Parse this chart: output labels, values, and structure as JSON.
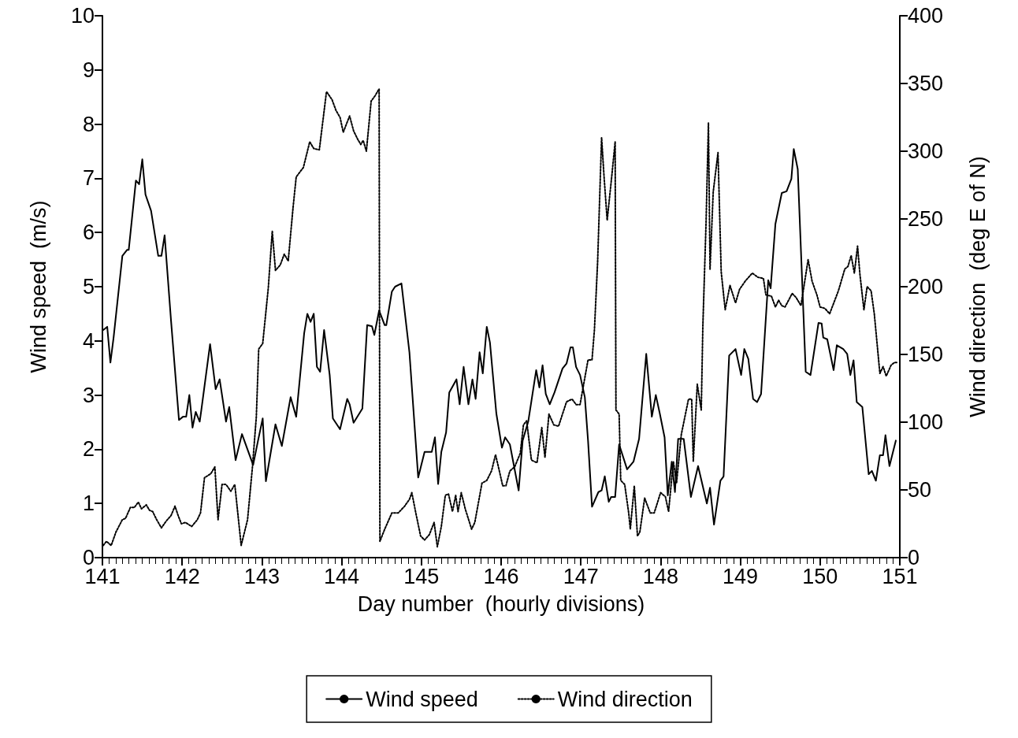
{
  "chart_data": {
    "type": "line",
    "xlabel": "Day number  (hourly divisions)",
    "ylabel": "Wind speed  (m/s)",
    "y2label": "Wind direction  (deg E of N)",
    "xlim": [
      141,
      151
    ],
    "xticks": [
      141,
      142,
      143,
      144,
      145,
      146,
      147,
      148,
      149,
      150,
      151
    ],
    "ylim": [
      0,
      10
    ],
    "yticks": [
      0,
      1,
      2,
      3,
      4,
      5,
      6,
      7,
      8,
      9,
      10
    ],
    "y2lim": [
      0,
      400
    ],
    "y2ticks": [
      0,
      50,
      100,
      150,
      200,
      250,
      300,
      350,
      400
    ],
    "grid": false,
    "legend": "bottom",
    "marker": "none",
    "series": [
      {
        "name": "Wind speed",
        "color": "#000000",
        "line_style": "solid",
        "x": [
          141.01,
          141.06,
          141.1,
          141.14,
          141.25,
          141.31,
          141.33,
          141.42,
          141.46,
          141.5,
          141.54,
          141.61,
          141.7,
          141.74,
          141.78,
          141.86,
          141.96,
          142.01,
          142.05,
          142.09,
          142.13,
          142.17,
          142.22,
          142.24,
          142.35,
          142.42,
          142.47,
          142.55,
          142.59,
          142.67,
          142.75,
          142.89,
          142.95,
          143.01,
          143.05,
          143.17,
          143.25,
          143.36,
          143.43,
          143.53,
          143.57,
          143.61,
          143.65,
          143.69,
          143.73,
          143.78,
          143.85,
          143.89,
          143.98,
          144.07,
          144.1,
          144.15,
          144.26,
          144.32,
          144.38,
          144.41,
          144.47,
          144.54,
          144.56,
          144.63,
          144.67,
          144.75,
          144.85,
          144.96,
          145.04,
          145.13,
          145.17,
          145.21,
          145.25,
          145.31,
          145.35,
          145.44,
          145.48,
          145.53,
          145.59,
          145.64,
          145.68,
          145.73,
          145.77,
          145.82,
          145.86,
          145.94,
          146.01,
          146.05,
          146.11,
          146.22,
          146.27,
          146.34,
          146.44,
          146.48,
          146.52,
          146.56,
          146.61,
          146.67,
          146.77,
          146.82,
          146.87,
          146.9,
          146.94,
          146.99,
          147.05,
          147.09,
          147.14,
          147.22,
          147.26,
          147.3,
          147.35,
          147.38,
          147.43,
          147.48,
          147.58,
          147.66,
          147.73,
          147.82,
          147.89,
          147.94,
          147.99,
          148.05,
          148.09,
          148.14,
          148.18,
          148.22,
          148.29,
          148.38,
          148.47,
          148.58,
          148.62,
          148.67,
          148.75,
          148.79,
          148.86,
          148.94,
          149.01,
          149.05,
          149.1,
          149.16,
          149.21,
          149.26,
          149.35,
          149.38,
          149.44,
          149.52,
          149.58,
          149.64,
          149.67,
          149.72,
          149.82,
          149.88,
          149.98,
          150.02,
          150.04,
          150.09,
          150.17,
          150.21,
          150.29,
          150.34,
          150.38,
          150.42,
          150.46,
          150.53,
          150.61,
          150.65,
          150.7,
          150.75,
          150.79,
          150.82,
          150.87,
          150.95
        ],
        "values": [
          4.2,
          4.26,
          3.6,
          4.06,
          5.57,
          5.68,
          5.68,
          6.96,
          6.89,
          7.35,
          6.7,
          6.4,
          5.57,
          5.57,
          5.95,
          4.38,
          2.54,
          2.6,
          2.6,
          3.0,
          2.4,
          2.69,
          2.51,
          2.72,
          3.94,
          3.11,
          3.29,
          2.51,
          2.78,
          1.8,
          2.28,
          1.71,
          2.15,
          2.57,
          1.41,
          2.46,
          2.06,
          2.96,
          2.6,
          4.14,
          4.5,
          4.35,
          4.5,
          3.52,
          3.43,
          4.2,
          3.37,
          2.57,
          2.37,
          2.93,
          2.83,
          2.49,
          2.75,
          4.29,
          4.27,
          4.11,
          4.56,
          4.29,
          4.29,
          4.91,
          5.0,
          5.06,
          3.79,
          1.48,
          1.95,
          1.95,
          2.22,
          1.36,
          1.95,
          2.31,
          3.05,
          3.29,
          2.83,
          3.52,
          2.83,
          3.29,
          2.93,
          3.79,
          3.4,
          4.26,
          3.97,
          2.66,
          2.03,
          2.22,
          2.09,
          1.24,
          2.16,
          2.51,
          3.46,
          3.14,
          3.55,
          3.02,
          2.83,
          3.05,
          3.49,
          3.58,
          3.88,
          3.88,
          3.52,
          3.37,
          2.96,
          2.16,
          0.94,
          1.21,
          1.24,
          1.5,
          1.03,
          1.12,
          1.12,
          2.09,
          1.63,
          1.77,
          2.19,
          3.76,
          2.6,
          3.0,
          2.66,
          2.22,
          1.15,
          1.77,
          1.21,
          2.19,
          2.19,
          1.12,
          1.69,
          1.0,
          1.29,
          0.61,
          1.42,
          1.5,
          3.73,
          3.85,
          3.37,
          3.85,
          3.67,
          2.93,
          2.87,
          3.02,
          5.12,
          4.97,
          6.16,
          6.73,
          6.76,
          6.99,
          7.54,
          7.17,
          3.43,
          3.37,
          4.33,
          4.32,
          4.06,
          4.03,
          3.46,
          3.92,
          3.85,
          3.76,
          3.37,
          3.64,
          2.87,
          2.78,
          1.54,
          1.6,
          1.42,
          1.89,
          1.89,
          2.26,
          1.69,
          2.16
        ]
      },
      {
        "name": "Wind direction",
        "color": "#000000",
        "line_style": "dotted",
        "axis": "y2",
        "x": [
          141.01,
          141.05,
          141.11,
          141.17,
          141.25,
          141.29,
          141.35,
          141.4,
          141.45,
          141.49,
          141.55,
          141.59,
          141.63,
          141.68,
          141.74,
          141.8,
          141.86,
          141.91,
          141.95,
          141.99,
          142.04,
          142.12,
          142.19,
          142.23,
          142.28,
          142.36,
          142.41,
          142.45,
          142.5,
          142.55,
          142.61,
          142.66,
          142.74,
          142.82,
          142.88,
          142.93,
          142.96,
          143.01,
          143.08,
          143.13,
          143.17,
          143.23,
          143.28,
          143.33,
          143.39,
          143.43,
          143.52,
          143.6,
          143.65,
          143.72,
          143.81,
          143.88,
          143.93,
          143.98,
          144.02,
          144.1,
          144.15,
          144.2,
          144.24,
          144.27,
          144.31,
          144.37,
          144.42,
          144.47,
          144.48,
          144.54,
          144.63,
          144.71,
          144.79,
          144.85,
          144.88,
          144.93,
          144.99,
          145.04,
          145.1,
          145.16,
          145.2,
          145.25,
          145.3,
          145.34,
          145.39,
          145.43,
          145.46,
          145.5,
          145.55,
          145.63,
          145.67,
          145.76,
          145.82,
          145.88,
          145.93,
          145.97,
          146.02,
          146.06,
          146.11,
          146.17,
          146.24,
          146.28,
          146.32,
          146.38,
          146.45,
          146.51,
          146.55,
          146.6,
          146.66,
          146.72,
          146.82,
          146.89,
          146.94,
          146.99,
          147.02,
          147.09,
          147.14,
          147.17,
          147.21,
          147.26,
          147.29,
          147.33,
          147.39,
          147.43,
          147.44,
          147.48,
          147.5,
          147.55,
          147.6,
          147.62,
          147.67,
          147.71,
          147.74,
          147.8,
          147.87,
          147.92,
          148.0,
          148.06,
          148.1,
          148.16,
          148.2,
          148.26,
          148.35,
          148.39,
          148.41,
          148.46,
          148.51,
          148.53,
          148.57,
          148.6,
          148.62,
          148.66,
          148.72,
          148.76,
          148.81,
          148.87,
          148.94,
          148.99,
          149.06,
          149.15,
          149.22,
          149.29,
          149.32,
          149.39,
          149.44,
          149.48,
          149.52,
          149.56,
          149.65,
          149.7,
          149.76,
          149.85,
          149.9,
          149.96,
          150.0,
          150.06,
          150.12,
          150.23,
          150.31,
          150.35,
          150.39,
          150.43,
          150.47,
          150.5,
          150.55,
          150.59,
          150.64,
          150.68,
          150.75,
          150.79,
          150.83,
          150.89,
          150.93,
          150.97
        ],
        "values": [
          9,
          12,
          9,
          19,
          28,
          29,
          37,
          37,
          41,
          36,
          39,
          35,
          34,
          28,
          22,
          27,
          31,
          38,
          31,
          25,
          26,
          23,
          28,
          33,
          59,
          62,
          67,
          28,
          54,
          54,
          49,
          54,
          9,
          28,
          66,
          104,
          154,
          158,
          199,
          241,
          212,
          216,
          224,
          219,
          258,
          281,
          288,
          307,
          302,
          301,
          344,
          338,
          330,
          325,
          314,
          326,
          315,
          309,
          305,
          308,
          300,
          337,
          341,
          346,
          12,
          21,
          33,
          33,
          38,
          43,
          48,
          33,
          16,
          13,
          17,
          26,
          8,
          23,
          46,
          47,
          34,
          46,
          34,
          48,
          36,
          21,
          26,
          55,
          57,
          64,
          76,
          66,
          53,
          53,
          64,
          67,
          77,
          98,
          101,
          72,
          70,
          96,
          74,
          106,
          98,
          97,
          115,
          117,
          113,
          113,
          123,
          146,
          146,
          168,
          218,
          310,
          282,
          249,
          283,
          307,
          109,
          106,
          57,
          54,
          33,
          21,
          53,
          16,
          19,
          44,
          33,
          33,
          48,
          45,
          34,
          71,
          55,
          91,
          117,
          117,
          71,
          128,
          109,
          171,
          247,
          321,
          213,
          270,
          299,
          211,
          183,
          201,
          188,
          198,
          204,
          210,
          207,
          206,
          194,
          193,
          185,
          190,
          186,
          185,
          195,
          192,
          186,
          220,
          204,
          194,
          185,
          184,
          180,
          197,
          213,
          215,
          223,
          210,
          230,
          209,
          183,
          200,
          197,
          180,
          136,
          141,
          134,
          142,
          144,
          144
        ]
      }
    ]
  }
}
